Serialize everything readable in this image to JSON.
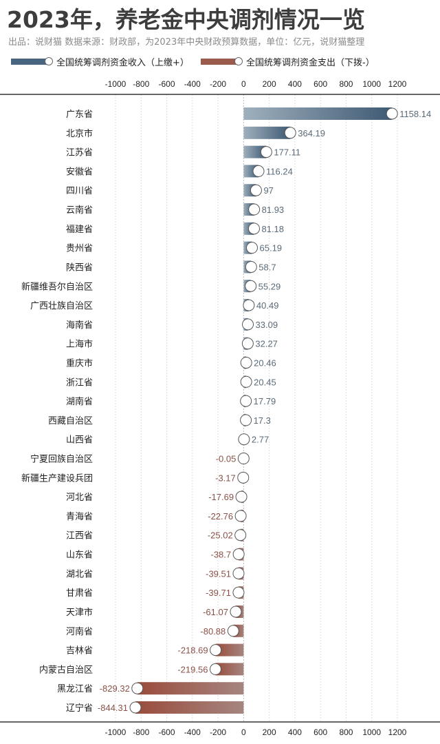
{
  "chart_data": {
    "type": "bar",
    "orientation": "horizontal",
    "title": "2023年，养老金中央调剂情况一览",
    "subtitle": "出品：说财猫   数据来源：财政部，为2023年中央财政预算数据，单位：亿元，说财猫整理",
    "legend": [
      {
        "label": "全国统筹调剂资金收入（上缴+）",
        "color": "#4a6580"
      },
      {
        "label": "全国统筹调剂资金支出（下拨-）",
        "color": "#9a5a4c"
      }
    ],
    "legend_position": "top",
    "xlim": [
      -1000,
      1200
    ],
    "ticks": [
      -1000,
      -800,
      -600,
      -400,
      -200,
      0,
      200,
      400,
      600,
      800,
      1000,
      1200
    ],
    "grid": true,
    "categories": [
      "广东省",
      "北京市",
      "江苏省",
      "安徽省",
      "四川省",
      "云南省",
      "福建省",
      "贵州省",
      "陕西省",
      "新疆维吾尔自治区",
      "广西壮族自治区",
      "海南省",
      "上海市",
      "重庆市",
      "浙江省",
      "湖南省",
      "西藏自治区",
      "山西省",
      "宁夏回族自治区",
      "新疆生产建设兵团",
      "河北省",
      "青海省",
      "江西省",
      "山东省",
      "湖北省",
      "甘肃省",
      "天津市",
      "河南省",
      "吉林省",
      "内蒙古自治区",
      "黑龙江省",
      "辽宁省"
    ],
    "values": [
      1158.14,
      364.19,
      177.11,
      116.24,
      97,
      81.93,
      81.18,
      65.19,
      58.7,
      55.29,
      40.49,
      33.09,
      32.27,
      20.46,
      20.45,
      17.79,
      17.3,
      2.77,
      -0.05,
      -3.17,
      -17.69,
      -22.76,
      -25.02,
      -38.7,
      -39.51,
      -39.71,
      -61.07,
      -80.88,
      -218.69,
      -219.56,
      -829.32,
      -844.31
    ],
    "colors": {
      "positive": "#4a6580",
      "negative": "#9a5a4c"
    }
  }
}
